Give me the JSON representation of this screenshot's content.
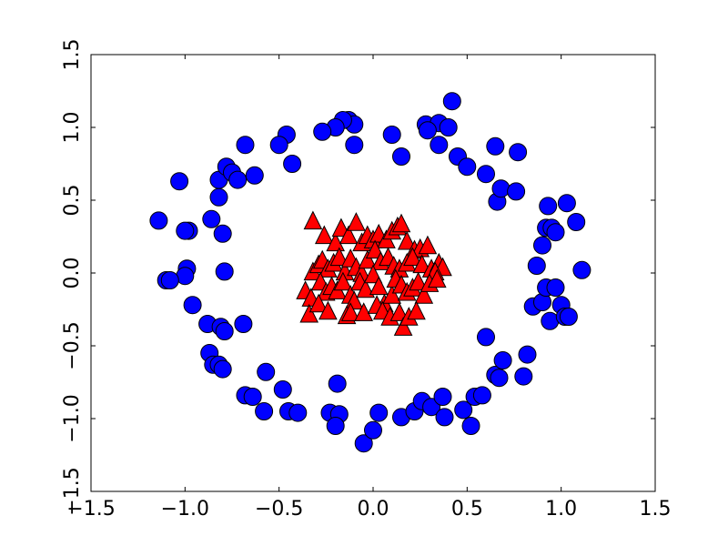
{
  "chart_data": {
    "type": "scatter",
    "title": "",
    "xlabel": "",
    "ylabel": "",
    "xlim": [
      -1.5,
      1.5
    ],
    "ylim": [
      -1.5,
      1.5
    ],
    "grid": false,
    "legend": "none",
    "x_ticks": [
      -1.5,
      -1.0,
      -0.5,
      0.0,
      0.5,
      1.0,
      1.5
    ],
    "y_ticks": [
      -1.5,
      -1.0,
      -0.5,
      0.0,
      0.5,
      1.0,
      1.5
    ],
    "x_tick_labels": [
      "−1.5",
      "−1.0",
      "−0.5",
      "0.0",
      "0.5",
      "1.0",
      "1.5"
    ],
    "y_tick_labels": [
      "−1.5",
      "−1.0",
      "−0.5",
      "0.0",
      "0.5",
      "1.0",
      "1.5"
    ],
    "series": [
      {
        "marker": "circle",
        "color": "#0000ff",
        "points": [
          [
            0.42,
            1.18
          ],
          [
            0.28,
            1.02
          ],
          [
            0.35,
            1.03
          ],
          [
            0.4,
            1.0
          ],
          [
            0.29,
            0.98
          ],
          [
            0.1,
            0.95
          ],
          [
            0.35,
            0.88
          ],
          [
            0.15,
            0.8
          ],
          [
            0.45,
            0.8
          ],
          [
            0.5,
            0.73
          ],
          [
            -0.13,
            1.05
          ],
          [
            -0.1,
            1.02
          ],
          [
            -0.16,
            1.05
          ],
          [
            -0.2,
            1.0
          ],
          [
            -0.27,
            0.97
          ],
          [
            -0.1,
            0.88
          ],
          [
            -0.46,
            0.95
          ],
          [
            -0.5,
            0.88
          ],
          [
            -0.68,
            0.88
          ],
          [
            -0.43,
            0.75
          ],
          [
            -1.03,
            0.63
          ],
          [
            -0.82,
            0.64
          ],
          [
            -0.78,
            0.73
          ],
          [
            -0.75,
            0.69
          ],
          [
            -0.72,
            0.64
          ],
          [
            -0.63,
            0.67
          ],
          [
            -0.82,
            0.52
          ],
          [
            -1.14,
            0.36
          ],
          [
            -0.86,
            0.37
          ],
          [
            -0.98,
            0.29
          ],
          [
            -1.0,
            0.29
          ],
          [
            -0.8,
            0.27
          ],
          [
            -0.99,
            0.03
          ],
          [
            -1.0,
            -0.02
          ],
          [
            -1.1,
            -0.05
          ],
          [
            -1.08,
            -0.05
          ],
          [
            -0.79,
            0.01
          ],
          [
            -0.96,
            -0.22
          ],
          [
            -0.88,
            -0.35
          ],
          [
            -0.81,
            -0.37
          ],
          [
            -0.79,
            -0.4
          ],
          [
            -0.69,
            -0.35
          ],
          [
            -0.87,
            -0.55
          ],
          [
            -0.85,
            -0.63
          ],
          [
            -0.82,
            -0.63
          ],
          [
            -0.8,
            -0.66
          ],
          [
            -0.57,
            -0.68
          ],
          [
            -0.68,
            -0.84
          ],
          [
            -0.64,
            -0.85
          ],
          [
            -0.48,
            -0.8
          ],
          [
            -0.58,
            -0.95
          ],
          [
            -0.45,
            -0.95
          ],
          [
            -0.4,
            -0.96
          ],
          [
            -0.19,
            -0.76
          ],
          [
            -0.23,
            -0.96
          ],
          [
            -0.18,
            -0.97
          ],
          [
            -0.2,
            -1.05
          ],
          [
            -0.05,
            -1.17
          ],
          [
            0.0,
            -1.08
          ],
          [
            0.03,
            -0.96
          ],
          [
            0.15,
            -0.99
          ],
          [
            0.22,
            -0.95
          ],
          [
            0.26,
            -0.88
          ],
          [
            0.31,
            -0.92
          ],
          [
            0.37,
            -0.85
          ],
          [
            0.38,
            -0.99
          ],
          [
            0.48,
            -0.94
          ],
          [
            0.52,
            -1.05
          ],
          [
            0.54,
            -0.85
          ],
          [
            0.58,
            -0.84
          ],
          [
            0.6,
            -0.44
          ],
          [
            0.65,
            -0.7
          ],
          [
            0.67,
            -0.72
          ],
          [
            0.69,
            -0.6
          ],
          [
            0.8,
            -0.71
          ],
          [
            0.82,
            -0.56
          ],
          [
            0.85,
            -0.23
          ],
          [
            0.9,
            -0.2
          ],
          [
            0.92,
            -0.1
          ],
          [
            0.94,
            -0.33
          ],
          [
            0.97,
            -0.1
          ],
          [
            1.0,
            -0.22
          ],
          [
            1.02,
            -0.3
          ],
          [
            1.04,
            -0.3
          ],
          [
            0.87,
            0.05
          ],
          [
            0.9,
            0.19
          ],
          [
            0.92,
            0.31
          ],
          [
            0.95,
            0.31
          ],
          [
            0.97,
            0.28
          ],
          [
            0.93,
            0.46
          ],
          [
            1.03,
            0.48
          ],
          [
            1.08,
            0.35
          ],
          [
            1.11,
            0.02
          ],
          [
            0.6,
            0.68
          ],
          [
            0.65,
            0.87
          ],
          [
            0.66,
            0.49
          ],
          [
            0.68,
            0.58
          ],
          [
            0.76,
            0.56
          ],
          [
            0.77,
            0.83
          ]
        ]
      },
      {
        "marker": "triangle",
        "color": "#ff0000",
        "points": [
          [
            -0.32,
            0.35
          ],
          [
            -0.26,
            0.25
          ],
          [
            -0.2,
            0.2
          ],
          [
            -0.17,
            0.3
          ],
          [
            -0.13,
            0.25
          ],
          [
            -0.09,
            0.34
          ],
          [
            -0.06,
            0.2
          ],
          [
            -0.03,
            0.25
          ],
          [
            0.0,
            0.22
          ],
          [
            0.03,
            0.26
          ],
          [
            0.07,
            0.22
          ],
          [
            0.1,
            0.28
          ],
          [
            0.13,
            0.31
          ],
          [
            0.18,
            0.21
          ],
          [
            0.22,
            0.15
          ],
          [
            0.25,
            0.16
          ],
          [
            0.29,
            0.18
          ],
          [
            0.15,
            0.33
          ],
          [
            -0.32,
            0.0
          ],
          [
            -0.29,
            0.05
          ],
          [
            -0.27,
            0.08
          ],
          [
            -0.24,
            0.02
          ],
          [
            -0.21,
            0.06
          ],
          [
            -0.18,
            0.1
          ],
          [
            -0.15,
            0.0
          ],
          [
            -0.12,
            0.09
          ],
          [
            -0.09,
            0.03
          ],
          [
            -0.06,
            -0.01
          ],
          [
            -0.03,
            0.08
          ],
          [
            0.01,
            0.15
          ],
          [
            0.04,
            0.07
          ],
          [
            0.08,
            0.1
          ],
          [
            0.11,
            0.04
          ],
          [
            0.14,
            0.02
          ],
          [
            0.18,
            0.06
          ],
          [
            0.21,
            0.1
          ],
          [
            0.26,
            0.05
          ],
          [
            0.31,
            0.02
          ],
          [
            0.35,
            0.06
          ],
          [
            0.37,
            0.03
          ],
          [
            0.33,
            0.0
          ],
          [
            -0.36,
            -0.13
          ],
          [
            -0.33,
            -0.18
          ],
          [
            -0.28,
            -0.07
          ],
          [
            -0.25,
            -0.14
          ],
          [
            -0.22,
            -0.1
          ],
          [
            -0.19,
            -0.13
          ],
          [
            -0.16,
            -0.07
          ],
          [
            -0.12,
            -0.16
          ],
          [
            -0.1,
            -0.2
          ],
          [
            -0.07,
            -0.07
          ],
          [
            -0.04,
            -0.12
          ],
          [
            0.0,
            -0.02
          ],
          [
            0.03,
            -0.1
          ],
          [
            0.06,
            -0.22
          ],
          [
            0.1,
            -0.16
          ],
          [
            0.12,
            -0.05
          ],
          [
            0.15,
            -0.09
          ],
          [
            0.18,
            -0.14
          ],
          [
            0.21,
            -0.11
          ],
          [
            0.24,
            -0.07
          ],
          [
            0.27,
            -0.16
          ],
          [
            0.3,
            -0.08
          ],
          [
            0.34,
            -0.05
          ],
          [
            -0.34,
            -0.29
          ],
          [
            -0.29,
            -0.22
          ],
          [
            -0.24,
            -0.27
          ],
          [
            -0.14,
            -0.3
          ],
          [
            -0.12,
            -0.28
          ],
          [
            -0.05,
            -0.28
          ],
          [
            0.02,
            -0.23
          ],
          [
            0.05,
            -0.27
          ],
          [
            0.09,
            -0.31
          ],
          [
            0.14,
            -0.28
          ],
          [
            0.16,
            -0.38
          ],
          [
            0.19,
            -0.31
          ],
          [
            0.23,
            -0.27
          ]
        ]
      }
    ]
  }
}
